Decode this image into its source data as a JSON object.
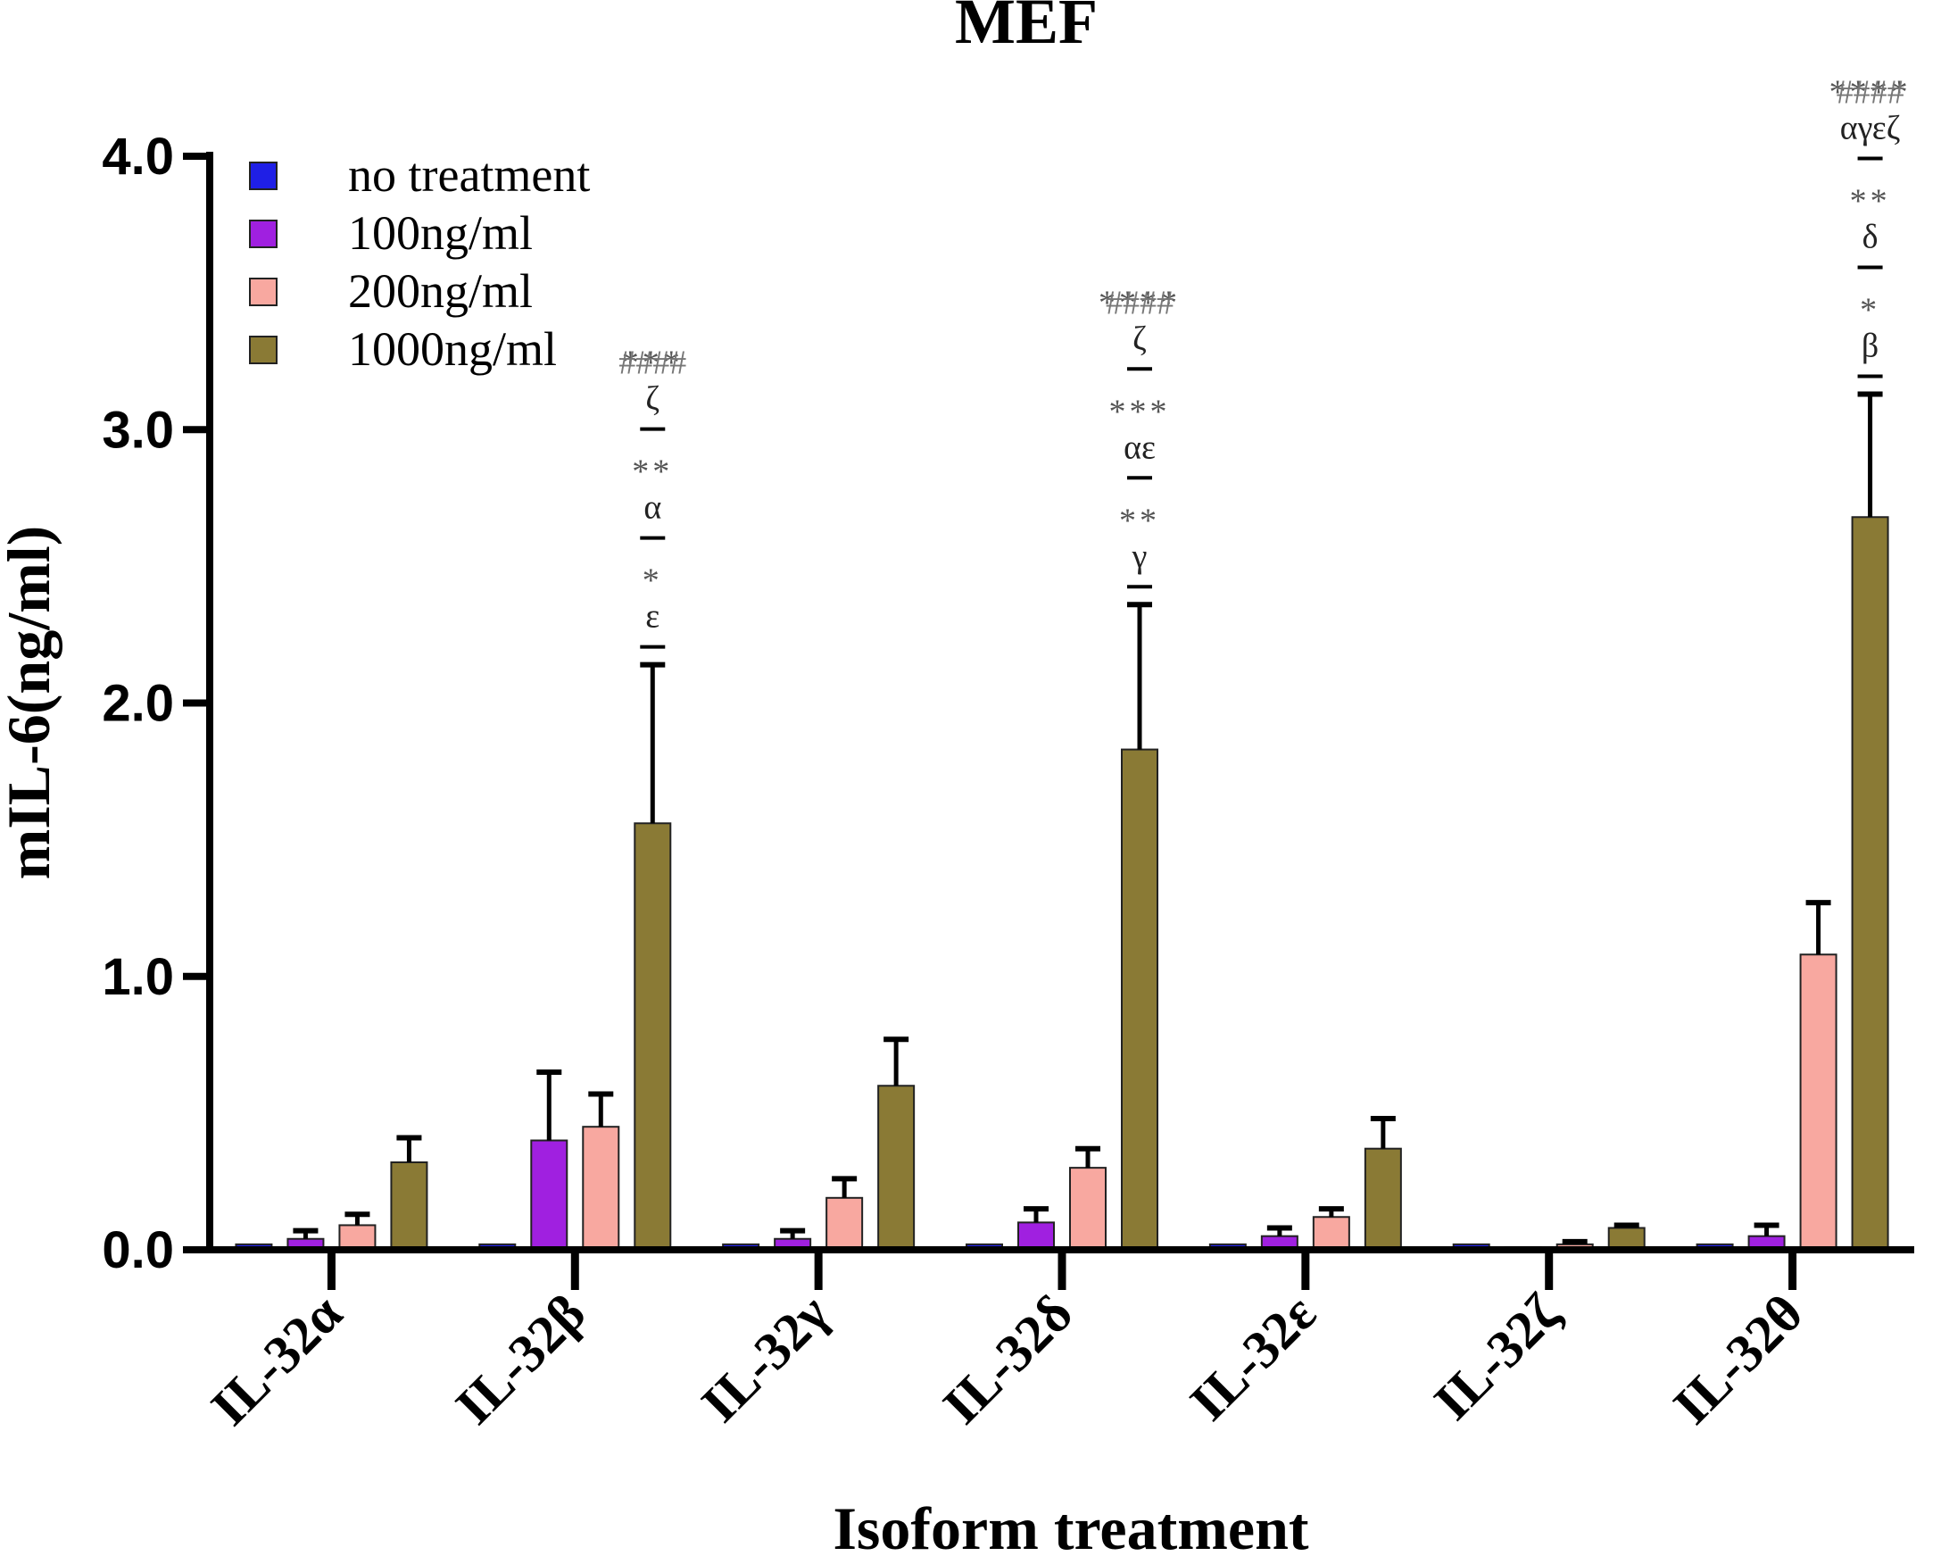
{
  "chart_data": {
    "type": "bar",
    "title": "MEF",
    "xlabel": "Isoform treatment",
    "ylabel": "mIL-6(ng/ml)",
    "ylim": [
      0,
      4.0
    ],
    "yticks": [
      "0.0",
      "1.0",
      "2.0",
      "3.0",
      "4.0"
    ],
    "categories": [
      "IL-32α",
      "IL-32β",
      "IL-32γ",
      "IL-32δ",
      "IL-32ε",
      "IL-32ζ",
      "IL-32θ"
    ],
    "legend_position": "top-left",
    "series": [
      {
        "name": "no treatment",
        "color": "#1f1fe6",
        "values": [
          0.02,
          0.02,
          0.02,
          0.02,
          0.02,
          0.02,
          0.02
        ],
        "errors": [
          0,
          0,
          0,
          0,
          0,
          0,
          0
        ]
      },
      {
        "name": "100ng/ml",
        "color": "#a020e0",
        "values": [
          0.04,
          0.4,
          0.04,
          0.1,
          0.05,
          0.01,
          0.05
        ],
        "errors": [
          0.03,
          0.25,
          0.03,
          0.05,
          0.03,
          0.0,
          0.04
        ]
      },
      {
        "name": "200ng/ml",
        "color": "#f8a8a0",
        "values": [
          0.09,
          0.45,
          0.19,
          0.3,
          0.12,
          0.02,
          1.08
        ],
        "errors": [
          0.04,
          0.12,
          0.07,
          0.07,
          0.03,
          0.01,
          0.19
        ]
      },
      {
        "name": "1000ng/ml",
        "color": "#8a7a35",
        "values": [
          0.32,
          1.56,
          0.6,
          1.83,
          0.37,
          0.08,
          2.68
        ],
        "errors": [
          0.09,
          0.58,
          0.17,
          0.53,
          0.11,
          0.01,
          0.45
        ]
      }
    ],
    "annotations": [
      {
        "category": "IL-32β",
        "hash": "####",
        "blocks": [
          {
            "stars": "***",
            "label": "ζ"
          },
          {
            "stars": "**",
            "label": "α"
          },
          {
            "stars": "*",
            "label": "ε"
          }
        ]
      },
      {
        "category": "IL-32δ",
        "hash": "####",
        "blocks": [
          {
            "stars": "****",
            "label": "ζ"
          },
          {
            "stars": "***",
            "label": "αε"
          },
          {
            "stars": "**",
            "label": "γ"
          }
        ]
      },
      {
        "category": "IL-32θ",
        "hash": "####",
        "blocks": [
          {
            "stars": "****",
            "label": "αγεζ"
          },
          {
            "stars": "**",
            "label": "δ"
          },
          {
            "stars": "*",
            "label": "β"
          }
        ]
      }
    ]
  }
}
